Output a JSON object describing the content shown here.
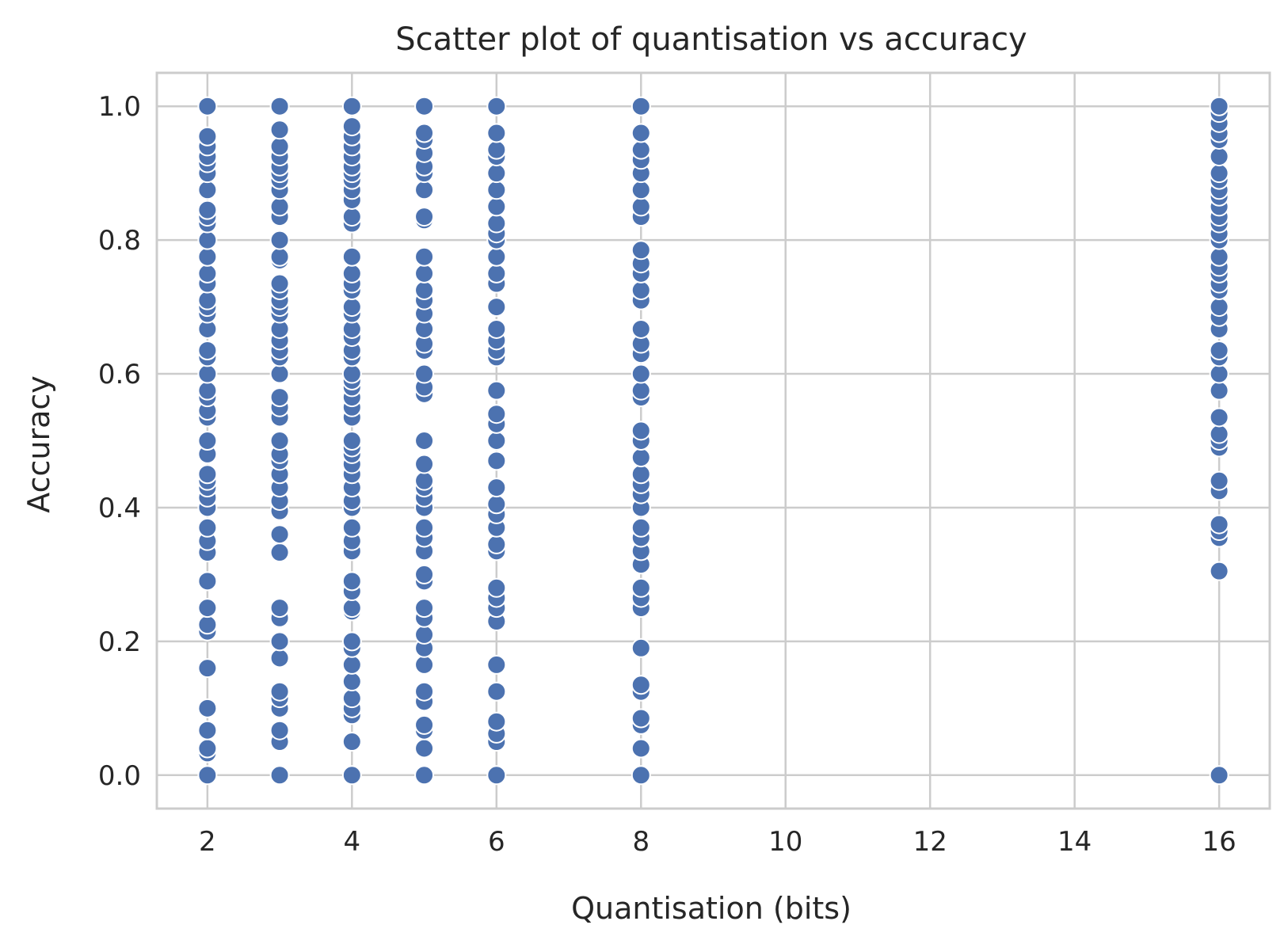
{
  "chart_data": {
    "type": "scatter",
    "title": "Scatter plot of quantisation vs accuracy",
    "xlabel": "Quantisation (bits)",
    "ylabel": "Accuracy",
    "xlim": [
      1.3,
      16.7
    ],
    "ylim": [
      -0.05,
      1.05
    ],
    "xticks": [
      2,
      4,
      6,
      8,
      10,
      12,
      14,
      16
    ],
    "yticks": [
      0.0,
      0.2,
      0.4,
      0.6,
      0.8,
      1.0
    ],
    "xtick_labels": [
      "2",
      "4",
      "6",
      "8",
      "10",
      "12",
      "14",
      "16"
    ],
    "ytick_labels": [
      "0.0",
      "0.2",
      "0.4",
      "0.6",
      "0.8",
      "1.0"
    ],
    "grid": true,
    "marker_color": "#4c72b0",
    "marker_edge_color": "#ffffff",
    "series": [
      {
        "x": 2,
        "y": [
          0.0,
          0.033,
          0.04,
          0.067,
          0.1,
          0.16,
          0.215,
          0.225,
          0.25,
          0.29,
          0.333,
          0.35,
          0.37,
          0.4,
          0.415,
          0.43,
          0.44,
          0.45,
          0.48,
          0.5,
          0.535,
          0.545,
          0.565,
          0.575,
          0.6,
          0.625,
          0.635,
          0.667,
          0.69,
          0.7,
          0.71,
          0.735,
          0.75,
          0.775,
          0.8,
          0.825,
          0.835,
          0.845,
          0.875,
          0.9,
          0.915,
          0.925,
          0.94,
          0.955,
          1.0
        ]
      },
      {
        "x": 3,
        "y": [
          0.0,
          0.05,
          0.067,
          0.1,
          0.115,
          0.125,
          0.175,
          0.2,
          0.235,
          0.25,
          0.333,
          0.36,
          0.395,
          0.41,
          0.43,
          0.45,
          0.47,
          0.48,
          0.5,
          0.535,
          0.55,
          0.565,
          0.6,
          0.625,
          0.635,
          0.65,
          0.667,
          0.69,
          0.7,
          0.71,
          0.725,
          0.735,
          0.77,
          0.775,
          0.8,
          0.835,
          0.85,
          0.875,
          0.89,
          0.9,
          0.91,
          0.925,
          0.94,
          0.965,
          1.0
        ]
      },
      {
        "x": 4,
        "y": [
          0.0,
          0.05,
          0.09,
          0.1,
          0.115,
          0.14,
          0.165,
          0.19,
          0.2,
          0.245,
          0.25,
          0.275,
          0.29,
          0.335,
          0.35,
          0.37,
          0.4,
          0.41,
          0.43,
          0.45,
          0.465,
          0.48,
          0.49,
          0.5,
          0.535,
          0.55,
          0.565,
          0.58,
          0.59,
          0.6,
          0.625,
          0.635,
          0.655,
          0.667,
          0.69,
          0.7,
          0.725,
          0.735,
          0.75,
          0.775,
          0.825,
          0.835,
          0.86,
          0.875,
          0.89,
          0.9,
          0.91,
          0.925,
          0.94,
          0.955,
          0.97,
          1.0
        ]
      },
      {
        "x": 5,
        "y": [
          0.0,
          0.04,
          0.067,
          0.075,
          0.11,
          0.125,
          0.165,
          0.19,
          0.21,
          0.235,
          0.25,
          0.29,
          0.3,
          0.335,
          0.355,
          0.37,
          0.4,
          0.415,
          0.43,
          0.44,
          0.465,
          0.5,
          0.57,
          0.58,
          0.6,
          0.635,
          0.645,
          0.667,
          0.69,
          0.71,
          0.725,
          0.75,
          0.775,
          0.83,
          0.835,
          0.875,
          0.9,
          0.91,
          0.93,
          0.95,
          0.96,
          1.0
        ]
      },
      {
        "x": 6,
        "y": [
          0.0,
          0.05,
          0.062,
          0.08,
          0.125,
          0.165,
          0.23,
          0.25,
          0.265,
          0.28,
          0.335,
          0.345,
          0.37,
          0.39,
          0.405,
          0.43,
          0.47,
          0.5,
          0.525,
          0.54,
          0.575,
          0.625,
          0.635,
          0.65,
          0.667,
          0.7,
          0.735,
          0.75,
          0.775,
          0.8,
          0.81,
          0.825,
          0.85,
          0.875,
          0.9,
          0.925,
          0.935,
          0.96,
          1.0
        ]
      },
      {
        "x": 8,
        "y": [
          0.0,
          0.04,
          0.075,
          0.085,
          0.125,
          0.135,
          0.19,
          0.25,
          0.265,
          0.28,
          0.315,
          0.335,
          0.355,
          0.37,
          0.4,
          0.42,
          0.435,
          0.45,
          0.475,
          0.5,
          0.515,
          0.565,
          0.575,
          0.6,
          0.63,
          0.645,
          0.667,
          0.71,
          0.725,
          0.75,
          0.765,
          0.785,
          0.835,
          0.85,
          0.875,
          0.9,
          0.92,
          0.935,
          0.96,
          1.0
        ]
      },
      {
        "x": 16,
        "y": [
          0.0,
          0.305,
          0.355,
          0.365,
          0.375,
          0.425,
          0.44,
          0.49,
          0.5,
          0.51,
          0.535,
          0.575,
          0.6,
          0.625,
          0.635,
          0.667,
          0.685,
          0.7,
          0.725,
          0.735,
          0.75,
          0.76,
          0.775,
          0.8,
          0.81,
          0.825,
          0.835,
          0.85,
          0.865,
          0.875,
          0.89,
          0.9,
          0.925,
          0.95,
          0.96,
          0.975,
          0.99,
          1.0
        ]
      }
    ]
  }
}
